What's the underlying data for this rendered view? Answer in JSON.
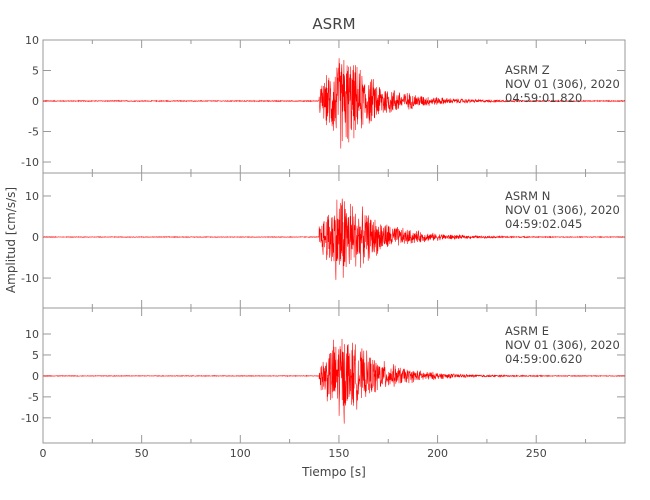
{
  "chart_data": {
    "type": "line",
    "title": "ASRM",
    "xlabel": "Tiempo [s]",
    "ylabel": "Amplitud [cm/s/s]",
    "xlim": [
      0,
      295
    ],
    "xticks": [
      "0",
      "50",
      "100",
      "150",
      "200",
      "250"
    ],
    "xtick_values": [
      0,
      50,
      100,
      150,
      200,
      250
    ],
    "grid": false,
    "line_color": "#ff0000",
    "panels": [
      {
        "station": "ASRM",
        "component": "Z",
        "date": "NOV 01 (306), 2020",
        "time": "04:59:01.820",
        "ylim": [
          -11.8,
          10
        ],
        "yticks": [
          "10",
          "5",
          "0",
          "-5",
          "-10"
        ],
        "ytick_values": [
          10,
          5,
          0,
          -5,
          -10
        ],
        "onset_s": 140,
        "peak_s": 152,
        "peak_amplitude": 11
      },
      {
        "station": "ASRM",
        "component": "N",
        "date": "NOV 01 (306), 2020",
        "time": "04:59:02.045",
        "ylim": [
          -17.3,
          15.6
        ],
        "yticks": [
          "10",
          "0",
          "-10"
        ],
        "ytick_values": [
          10,
          0,
          -10
        ],
        "onset_s": 140,
        "peak_s": 151,
        "peak_amplitude": 16
      },
      {
        "station": "ASRM",
        "component": "E",
        "date": "NOV 01 (306), 2020",
        "time": "04:59:00.620",
        "ylim": [
          -16,
          16.2
        ],
        "yticks": [
          "10",
          "5",
          "0",
          "-5",
          "-10"
        ],
        "ytick_values": [
          10,
          5,
          0,
          -5,
          -10
        ],
        "onset_s": 140,
        "peak_s": 151,
        "peak_amplitude": 15
      }
    ]
  }
}
